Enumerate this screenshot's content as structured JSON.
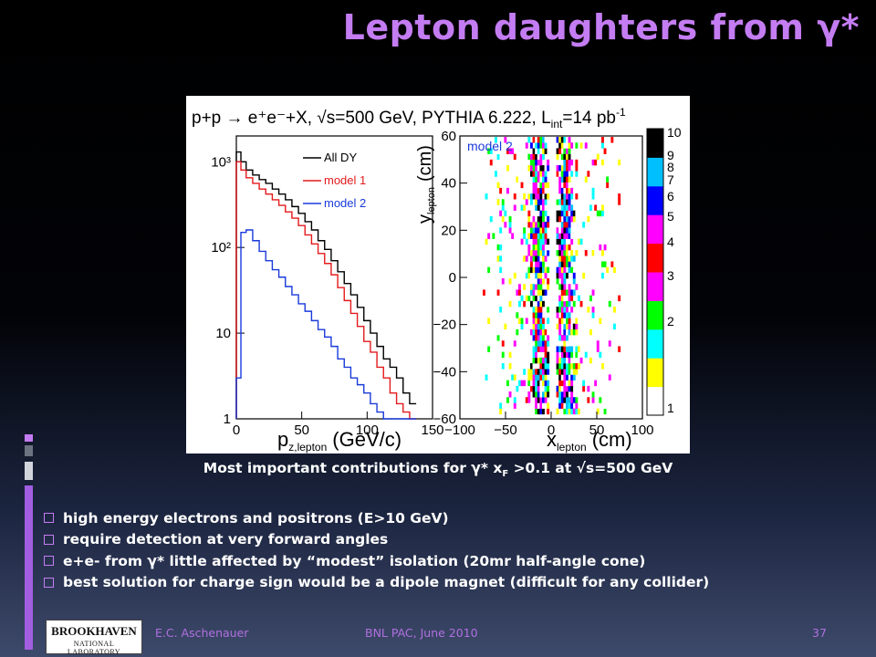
{
  "slide": {
    "title": "Lepton daughters from γ*",
    "caption": {
      "pre": "Most important contributions for γ* x",
      "sub": "F",
      "post": " >0.1 at √s=500 GeV"
    },
    "bullets": [
      "high energy electrons and positrons (E>10 GeV)",
      "require detection at very forward angles",
      "e+e- from γ* little affected by “modest” isolation (20mr half-angle cone)",
      "best solution for charge sign would be a dipole magnet (difficult for any collider)"
    ],
    "footer": {
      "author": "E.C. Aschenauer",
      "event": "BNL PAC, June 2010",
      "page": "37"
    },
    "logo": {
      "line1": "BROOKHAVEN",
      "line2": "NATIONAL LABORATORY"
    },
    "accent_color": "#c47cf2"
  },
  "figure": {
    "header": "p+p → e⁺e⁻+X, √s=500 GeV, PYTHIA 6.222, L",
    "header_sub": "int",
    "header_tail": "=14 pb",
    "header_sup": "-1"
  },
  "chart_data": [
    {
      "type": "line",
      "xlabel": "p",
      "xlabel_sub": "z,lepton",
      "xlabel_unit": "(GeV/c)",
      "ylabel": "",
      "log_y": true,
      "xlim": [
        0,
        150
      ],
      "ylim": [
        1,
        2000
      ],
      "x_ticks": [
        "0",
        "50",
        "100",
        "150"
      ],
      "y_ticks": [
        "1",
        "10",
        "10²",
        "10³"
      ],
      "legend_position": "top-right",
      "x": [
        2,
        5,
        10,
        15,
        20,
        25,
        30,
        35,
        40,
        45,
        50,
        55,
        60,
        65,
        70,
        75,
        80,
        85,
        90,
        95,
        100,
        105,
        110,
        115,
        120,
        125,
        130,
        135
      ],
      "series": [
        {
          "name": "All DY",
          "color": "#000000",
          "values": [
            1300,
            1000,
            800,
            700,
            620,
            560,
            480,
            420,
            360,
            300,
            250,
            200,
            160,
            120,
            95,
            70,
            52,
            38,
            28,
            20,
            14,
            10,
            7,
            5,
            4,
            3,
            2,
            1.5
          ]
        },
        {
          "name": "model 1",
          "color": "#e41a1c",
          "values": [
            1000,
            800,
            650,
            560,
            480,
            420,
            360,
            310,
            260,
            220,
            180,
            140,
            110,
            85,
            65,
            48,
            34,
            24,
            17,
            12,
            8,
            6,
            4,
            3,
            2,
            1.5,
            1.2,
            1
          ]
        },
        {
          "name": "model 2",
          "color": "#1a3adb",
          "values": [
            3,
            150,
            160,
            120,
            90,
            70,
            55,
            45,
            35,
            28,
            22,
            18,
            14,
            11,
            9,
            7,
            5,
            4,
            3,
            2.5,
            2,
            1.5,
            1.2,
            1,
            1,
            1,
            1,
            1
          ]
        }
      ]
    },
    {
      "type": "heatmap",
      "title": "model 2",
      "xlabel": "x",
      "xlabel_sub": "lepton",
      "xlabel_unit": "(cm)",
      "ylabel": "y",
      "ylabel_sub": "lepton",
      "ylabel_unit": "(cm)",
      "xlim": [
        -100,
        100
      ],
      "ylim": [
        -60,
        60
      ],
      "x_ticks": [
        "−100",
        "−50",
        "0",
        "50",
        "100"
      ],
      "y_ticks": [
        "−60",
        "−40",
        "−20",
        "0",
        "20",
        "40",
        "60"
      ],
      "z_ticks": [
        "1",
        "2",
        "3",
        "4",
        "5",
        "6",
        "7",
        "8",
        "9",
        "10"
      ],
      "palette": [
        "#ffffff",
        "#ffff00",
        "#00ffff",
        "#00ff00",
        "#ff00ff",
        "#ff0000",
        "#ff00ff",
        "#0000ff",
        "#00bfff",
        "#000000"
      ]
    }
  ]
}
